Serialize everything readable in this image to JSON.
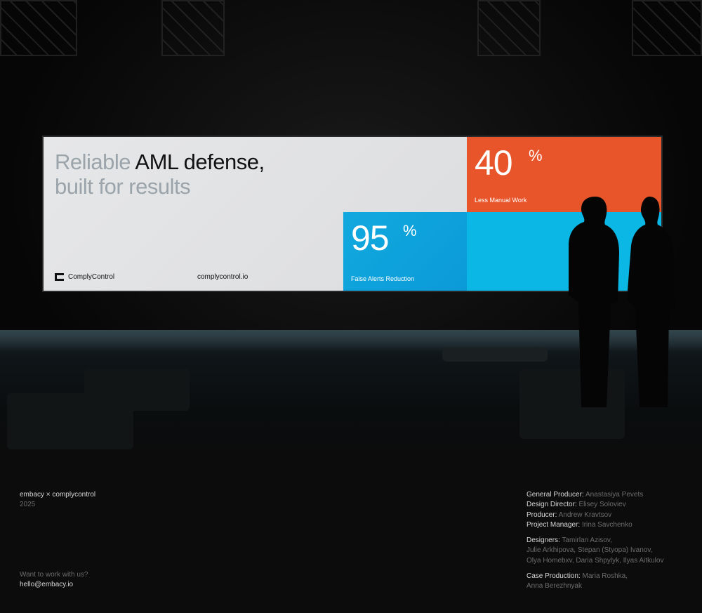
{
  "billboard": {
    "headline_light_1": "Reliable",
    "headline_dark": "AML defense,",
    "headline_light_2": "built for results",
    "logo_text": "ComplyControl",
    "url": "complycontrol.io",
    "stat1": {
      "value": "40",
      "unit": "%",
      "label": "Less Manual Work",
      "color": "#e8552a"
    },
    "stat2": {
      "value": "95",
      "unit": "%",
      "label": "False Alerts Reduction",
      "color": "#12a9df"
    }
  },
  "footer": {
    "project": "embacy × complycontrol",
    "year": "2025",
    "cta": "Want to work with us?",
    "email": "hello@embacy.io",
    "credits": [
      {
        "role": "General Producer:",
        "names": "Anastasiya Pevets"
      },
      {
        "role": "Design Director:",
        "names": "Elisey Soloviev"
      },
      {
        "role": "Producer:",
        "names": "Andrew Kravtsov"
      },
      {
        "role": "Project Manager:",
        "names": "Irina Savchenko"
      }
    ],
    "designers": {
      "role": "Designers:",
      "line1": "Tamirlan Azisov,",
      "line2": "Julie Arkhipova, Stepan (Styopa) Ivanov,",
      "line3": "Olya Homebxv, Daria Shpylyk, Ilyas Aitkulov"
    },
    "case": {
      "role": "Case Production:",
      "line1": "Maria Roshka,",
      "line2": "Anna Berezhnyak"
    }
  }
}
